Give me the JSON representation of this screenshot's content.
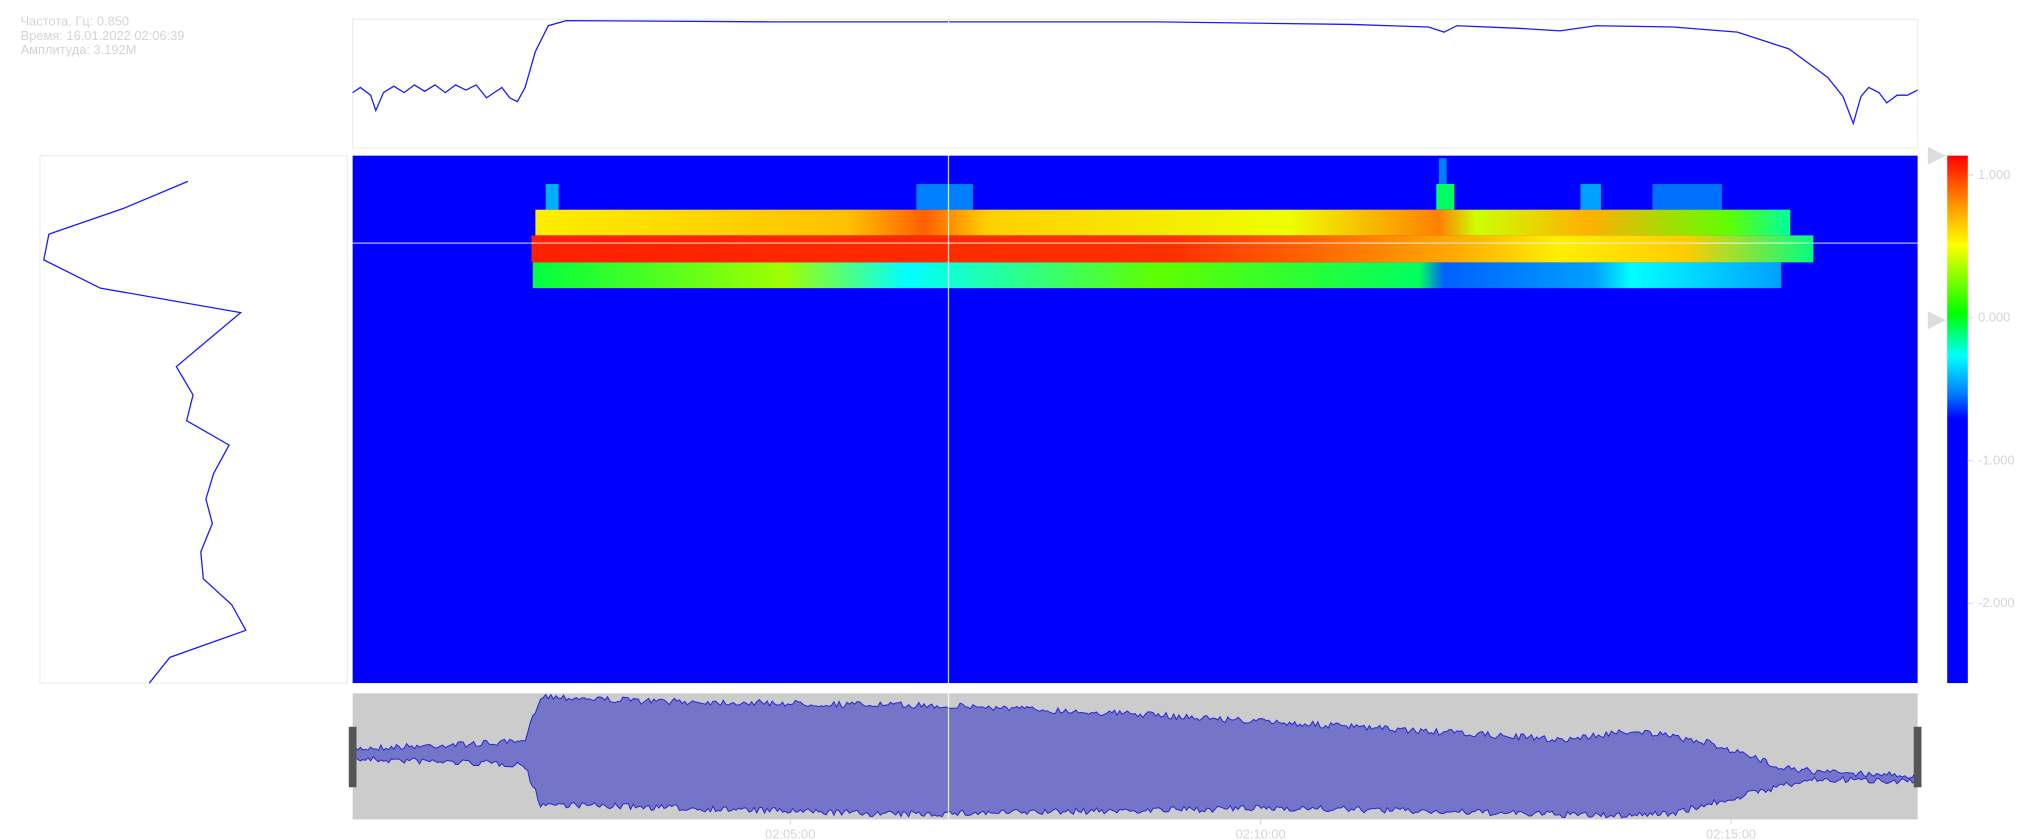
{
  "info": {
    "frequency": "Частота, Гц: 0.850",
    "time": "Время: 16.01.2022 02:06:39",
    "amplitude": "Амплитуда: 3.192M"
  },
  "colorbar": {
    "ticks": [
      "1.000",
      "0.000",
      "-1.000",
      "-2.000"
    ]
  },
  "time_axis": {
    "ticks": [
      "02:05:00",
      "02:10:00",
      "02:15:00"
    ]
  }
}
